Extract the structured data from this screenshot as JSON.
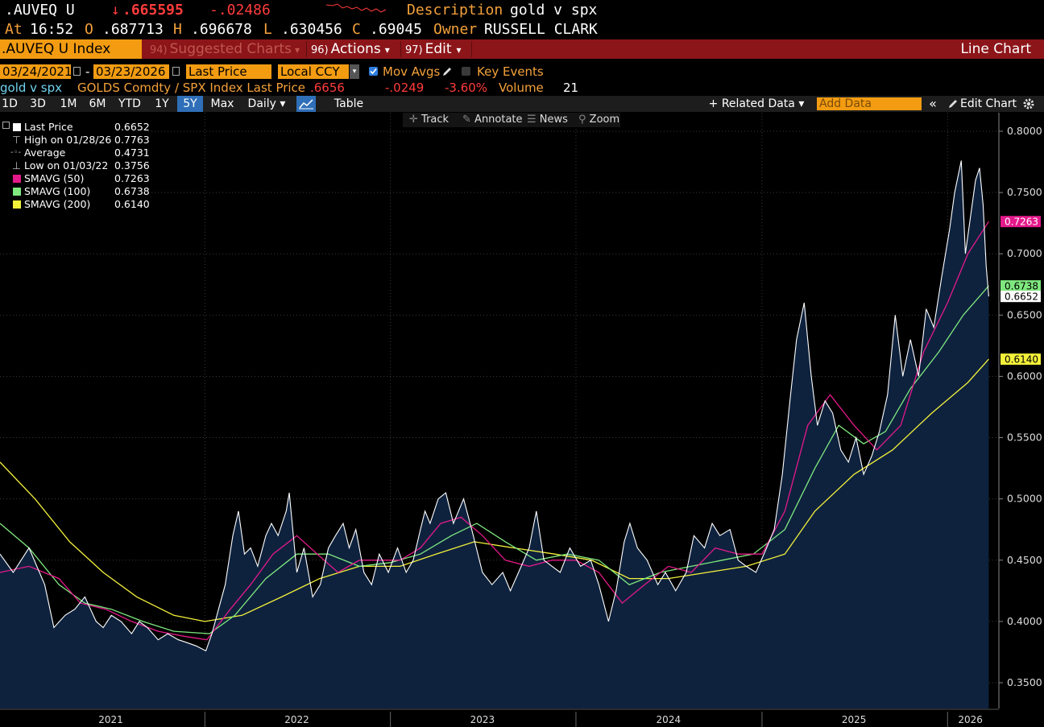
{
  "header": {
    "ticker": ".AUVEQ U",
    "arrow": "↓",
    "price": ".665595",
    "change": "-.02486",
    "description_label": "Description",
    "description": "gold v spx",
    "at_label": "At",
    "time": "16:52",
    "o_label": "O",
    "open": ".687713",
    "h_label": "H",
    "high": ".696678",
    "l_label": "L",
    "low": ".630456",
    "c_label": "C",
    "close": ".69045",
    "owner_label": "Owner",
    "owner": "RUSSELL CLARK"
  },
  "menubar": {
    "ticker_field": ".AUVEQ U Index",
    "suggested_num": "94)",
    "suggested": "Suggested Charts",
    "actions_num": "96)",
    "actions": "Actions",
    "edit_num": "97)",
    "edit": "Edit",
    "caret": "▾",
    "chart_type": "Line Chart"
  },
  "controls": {
    "start_date": "03/24/2021",
    "dash": "-",
    "end_date": "03/23/2026",
    "field": "Last Price",
    "currency": "Local CCY",
    "dd_arrow": "▾",
    "mov_avgs": "Mov Avgs",
    "key_events": "Key Events"
  },
  "infoline": {
    "name": "gold v spx",
    "desc": "GOLDS Comdty / SPX Index Last Price",
    "last": ".6656",
    "change": "-.0249",
    "pct": "-3.60%",
    "volume_label": "Volume",
    "volume": "21"
  },
  "toolbar": {
    "ranges": [
      "1D",
      "3D",
      "1M",
      "6M",
      "YTD",
      "1Y",
      "5Y",
      "Max"
    ],
    "active_range": "5Y",
    "period": "Daily ▾",
    "table": "Table",
    "related": "+ Related Data ▾",
    "add_data": "Add Data",
    "collapse": "«",
    "edit_chart": "Edit Chart"
  },
  "chart_tools": {
    "track": "Track",
    "annotate": "Annotate",
    "news": "News",
    "zoom": "Zoom"
  },
  "legend": {
    "items": [
      {
        "label": "Last Price",
        "value": "0.6652",
        "color": "#ffffff"
      },
      {
        "label": "High on 01/28/26",
        "value": "0.7763",
        "color": "#bbbbbb"
      },
      {
        "label": "Average",
        "value": "0.4731",
        "color": "#bbbbbb"
      },
      {
        "label": "Low on 01/03/22",
        "value": "0.3756",
        "color": "#bbbbbb"
      },
      {
        "label": "SMAVG (50)",
        "value": "0.7263",
        "color": "#e4198a"
      },
      {
        "label": "SMAVG (100)",
        "value": "0.6738",
        "color": "#7fe87f"
      },
      {
        "label": "SMAVG (200)",
        "value": "0.6140",
        "color": "#f3f03a"
      }
    ]
  },
  "colors": {
    "accent": "#f39c12",
    "menubar": "#8c1519",
    "down": "#ff3b3b",
    "area": "#0e223e",
    "sma50": "#e4198a",
    "sma100": "#7fe87f",
    "sma200": "#f3f03a"
  },
  "chart_data": {
    "type": "area",
    "title": "gold v spx",
    "x_unit": "date",
    "xlim": [
      "2020-11-24",
      "2026-04-12"
    ],
    "ylim": [
      0.33,
      0.81
    ],
    "y_ticks": [
      "0.3500",
      "0.4000",
      "0.4500",
      "0.5000",
      "0.5500",
      "0.6000",
      "0.6500",
      "0.7000",
      "0.7500",
      "0.8000"
    ],
    "x_labels": [
      {
        "date": "2021-06-30",
        "label": "2021"
      },
      {
        "date": "2022-07-01",
        "label": "2022"
      },
      {
        "date": "2023-07-01",
        "label": "2023"
      },
      {
        "date": "2024-07-01",
        "label": "2024"
      },
      {
        "date": "2025-07-01",
        "label": "2025"
      },
      {
        "date": "2026-02-15",
        "label": "2026"
      }
    ],
    "year_boundaries": [
      "2022-01-01",
      "2023-01-01",
      "2024-01-01",
      "2025-01-01",
      "2026-01-01"
    ],
    "last_date": "2026-03-23",
    "series": [
      {
        "name": "Last Price",
        "x": [
          "2020-11-24",
          "2020-12-20",
          "2021-01-20",
          "2021-02-20",
          "2021-03-10",
          "2021-04-01",
          "2021-04-20",
          "2021-05-10",
          "2021-06-01",
          "2021-06-15",
          "2021-07-01",
          "2021-07-20",
          "2021-08-10",
          "2021-08-25",
          "2021-09-10",
          "2021-10-01",
          "2021-10-20",
          "2021-11-10",
          "2021-11-25",
          "2021-12-15",
          "2022-01-03",
          "2022-01-15",
          "2022-01-28",
          "2022-02-10",
          "2022-02-25",
          "2022-03-08",
          "2022-03-20",
          "2022-04-01",
          "2022-04-15",
          "2022-05-01",
          "2022-05-12",
          "2022-05-25",
          "2022-06-10",
          "2022-06-16",
          "2022-07-01",
          "2022-07-15",
          "2022-08-01",
          "2022-08-16",
          "2022-09-01",
          "2022-09-15",
          "2022-09-30",
          "2022-10-12",
          "2022-10-25",
          "2022-11-10",
          "2022-11-25",
          "2022-12-10",
          "2022-12-28",
          "2023-01-15",
          "2023-02-01",
          "2023-02-15",
          "2023-03-01",
          "2023-03-10",
          "2023-03-20",
          "2023-04-05",
          "2023-04-20",
          "2023-05-05",
          "2023-05-25",
          "2023-06-10",
          "2023-07-01",
          "2023-07-20",
          "2023-08-10",
          "2023-08-25",
          "2023-09-10",
          "2023-10-01",
          "2023-10-15",
          "2023-10-30",
          "2023-11-15",
          "2023-12-01",
          "2023-12-20",
          "2024-01-10",
          "2024-01-30",
          "2024-02-15",
          "2024-03-05",
          "2024-03-20",
          "2024-04-05",
          "2024-04-16",
          "2024-05-01",
          "2024-05-20",
          "2024-06-10",
          "2024-06-25",
          "2024-07-15",
          "2024-08-05",
          "2024-08-20",
          "2024-09-10",
          "2024-09-25",
          "2024-10-10",
          "2024-10-30",
          "2024-11-15",
          "2024-12-01",
          "2024-12-20",
          "2025-01-10",
          "2025-01-25",
          "2025-02-10",
          "2025-02-25",
          "2025-03-10",
          "2025-03-25",
          "2025-04-08",
          "2025-04-20",
          "2025-05-05",
          "2025-05-20",
          "2025-06-05",
          "2025-06-20",
          "2025-07-05",
          "2025-07-20",
          "2025-08-05",
          "2025-08-20",
          "2025-09-05",
          "2025-09-20",
          "2025-10-05",
          "2025-10-20",
          "2025-11-05",
          "2025-11-20",
          "2025-12-05",
          "2025-12-20",
          "2026-01-05",
          "2026-01-15",
          "2026-01-28",
          "2026-02-05",
          "2026-02-15",
          "2026-02-25",
          "2026-03-05",
          "2026-03-12",
          "2026-03-18",
          "2026-03-23"
        ],
        "y": [
          0.455,
          0.44,
          0.46,
          0.43,
          0.395,
          0.405,
          0.41,
          0.42,
          0.4,
          0.395,
          0.405,
          0.4,
          0.39,
          0.4,
          0.395,
          0.385,
          0.39,
          0.385,
          0.383,
          0.38,
          0.376,
          0.39,
          0.41,
          0.43,
          0.47,
          0.49,
          0.455,
          0.46,
          0.445,
          0.47,
          0.48,
          0.47,
          0.49,
          0.505,
          0.44,
          0.46,
          0.42,
          0.43,
          0.46,
          0.47,
          0.48,
          0.46,
          0.475,
          0.44,
          0.43,
          0.455,
          0.44,
          0.46,
          0.44,
          0.45,
          0.475,
          0.49,
          0.48,
          0.5,
          0.505,
          0.48,
          0.5,
          0.475,
          0.44,
          0.43,
          0.44,
          0.425,
          0.44,
          0.46,
          0.49,
          0.45,
          0.445,
          0.44,
          0.46,
          0.445,
          0.45,
          0.43,
          0.4,
          0.425,
          0.465,
          0.48,
          0.46,
          0.45,
          0.43,
          0.44,
          0.425,
          0.44,
          0.47,
          0.46,
          0.48,
          0.47,
          0.475,
          0.45,
          0.445,
          0.44,
          0.46,
          0.475,
          0.52,
          0.58,
          0.63,
          0.66,
          0.6,
          0.56,
          0.58,
          0.57,
          0.54,
          0.53,
          0.55,
          0.52,
          0.535,
          0.555,
          0.585,
          0.65,
          0.6,
          0.63,
          0.6,
          0.655,
          0.64,
          0.68,
          0.72,
          0.75,
          0.776,
          0.7,
          0.73,
          0.76,
          0.77,
          0.74,
          0.69,
          0.6652
        ],
        "color": "#ffffff"
      },
      {
        "name": "SMAVG (50)",
        "x": [
          "2020-11-24",
          "2021-01-20",
          "2021-03-20",
          "2021-05-01",
          "2021-06-20",
          "2021-08-10",
          "2021-10-01",
          "2021-11-20",
          "2022-01-05",
          "2022-02-20",
          "2022-04-01",
          "2022-05-15",
          "2022-07-01",
          "2022-08-10",
          "2022-09-20",
          "2022-11-01",
          "2022-12-15",
          "2023-01-20",
          "2023-03-01",
          "2023-04-10",
          "2023-05-20",
          "2023-07-01",
          "2023-08-15",
          "2023-10-01",
          "2023-11-15",
          "2024-01-01",
          "2024-02-15",
          "2024-04-01",
          "2024-05-15",
          "2024-07-01",
          "2024-08-15",
          "2024-10-01",
          "2024-11-15",
          "2025-01-01",
          "2025-02-15",
          "2025-04-01",
          "2025-05-15",
          "2025-07-01",
          "2025-08-15",
          "2025-10-01",
          "2025-11-15",
          "2026-01-01",
          "2026-02-10",
          "2026-03-23"
        ],
        "y": [
          0.44,
          0.445,
          0.435,
          0.415,
          0.41,
          0.4,
          0.392,
          0.388,
          0.385,
          0.41,
          0.43,
          0.455,
          0.47,
          0.455,
          0.44,
          0.45,
          0.45,
          0.45,
          0.46,
          0.48,
          0.485,
          0.47,
          0.45,
          0.445,
          0.45,
          0.45,
          0.44,
          0.415,
          0.43,
          0.445,
          0.44,
          0.46,
          0.455,
          0.455,
          0.49,
          0.56,
          0.585,
          0.56,
          0.54,
          0.56,
          0.62,
          0.66,
          0.7,
          0.7263
        ],
        "color": "#e4198a"
      },
      {
        "name": "SMAVG (100)",
        "x": [
          "2020-11-24",
          "2021-01-20",
          "2021-03-20",
          "2021-05-10",
          "2021-07-01",
          "2021-09-01",
          "2021-11-01",
          "2022-01-10",
          "2022-03-01",
          "2022-05-01",
          "2022-07-01",
          "2022-09-01",
          "2022-11-01",
          "2023-01-01",
          "2023-03-01",
          "2023-05-01",
          "2023-06-20",
          "2023-08-15",
          "2023-10-15",
          "2023-12-15",
          "2024-02-15",
          "2024-04-15",
          "2024-06-15",
          "2024-08-15",
          "2024-10-15",
          "2024-12-15",
          "2025-02-15",
          "2025-04-15",
          "2025-06-01",
          "2025-07-20",
          "2025-09-01",
          "2025-10-20",
          "2025-12-15",
          "2026-02-01",
          "2026-03-23"
        ],
        "y": [
          0.48,
          0.46,
          0.43,
          0.415,
          0.41,
          0.4,
          0.392,
          0.39,
          0.405,
          0.435,
          0.455,
          0.455,
          0.445,
          0.448,
          0.455,
          0.47,
          0.48,
          0.465,
          0.45,
          0.455,
          0.45,
          0.43,
          0.44,
          0.445,
          0.45,
          0.455,
          0.475,
          0.525,
          0.56,
          0.545,
          0.555,
          0.59,
          0.62,
          0.65,
          0.6738
        ],
        "color": "#7fe87f"
      },
      {
        "name": "SMAVG (200)",
        "x": [
          "2020-11-24",
          "2021-02-01",
          "2021-04-10",
          "2021-06-15",
          "2021-08-20",
          "2021-11-01",
          "2022-01-01",
          "2022-03-15",
          "2022-06-01",
          "2022-08-15",
          "2022-11-01",
          "2023-01-20",
          "2023-04-01",
          "2023-06-15",
          "2023-09-01",
          "2023-11-20",
          "2024-02-01",
          "2024-04-15",
          "2024-07-01",
          "2024-09-15",
          "2024-12-01",
          "2025-02-15",
          "2025-04-15",
          "2025-07-01",
          "2025-09-15",
          "2025-12-01",
          "2026-02-10",
          "2026-03-23"
        ],
        "y": [
          0.53,
          0.5,
          0.465,
          0.44,
          0.42,
          0.405,
          0.4,
          0.405,
          0.42,
          0.435,
          0.445,
          0.445,
          0.455,
          0.465,
          0.46,
          0.455,
          0.45,
          0.435,
          0.435,
          0.44,
          0.445,
          0.455,
          0.49,
          0.52,
          0.54,
          0.57,
          0.595,
          0.614
        ],
        "color": "#f3f03a"
      }
    ],
    "price_labels": [
      {
        "series": "SMAVG (50)",
        "value": 0.7263,
        "text": "0.7263",
        "bg": "#e4198a",
        "fg": "#ffffff"
      },
      {
        "series": "SMAVG (100)",
        "value": 0.6738,
        "text": "0.6738",
        "bg": "#7fe87f",
        "fg": "#000000"
      },
      {
        "series": "Last Price",
        "value": 0.6652,
        "text": "0.6652",
        "bg": "#ffffff",
        "fg": "#000000"
      },
      {
        "series": "SMAVG (200)",
        "value": 0.614,
        "text": "0.6140",
        "bg": "#f3f03a",
        "fg": "#000000"
      }
    ]
  }
}
